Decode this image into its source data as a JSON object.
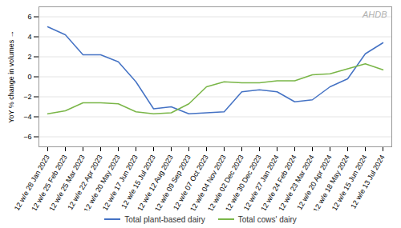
{
  "chart_data": {
    "type": "line",
    "ylabel": "YoY % change in volumes",
    "annotation": "AHDB",
    "categories": [
      "12 w/e 28 Jan 2023",
      "12 w/e 25 Feb 2023",
      "12 w/e 25 Mar 2023",
      "12 w/e 22 Apr 2023",
      "12 w/e 20 May 2023",
      "12 w/e 17 Jun 2023",
      "12 w/e 15 Jul 2023",
      "12 w/e 12 Aug 2023",
      "12 w/e 09 Sep 2023",
      "12 w/e 07 Oct 2023",
      "12 w/e 04 Nov 2023",
      "12 w/e 02 Dec 2023",
      "12 w/e 30 Dec 2023",
      "12 w/e 27 Jan 2024",
      "12 w/e 24 Feb 2024",
      "12 w/e 23 Mar 2024",
      "12 w/e 20 Apr 2024",
      "12 w/e 18 May 2024",
      "12 w/e 15 Jun 2024",
      "12 w/e 13 Jul 2024"
    ],
    "series": [
      {
        "name": "Total plant-based dairy",
        "color": "#4472C4",
        "values": [
          5.0,
          4.2,
          2.2,
          2.2,
          1.5,
          -0.5,
          -3.2,
          -3.0,
          -3.7,
          -3.6,
          -3.5,
          -1.5,
          -1.3,
          -1.5,
          -2.5,
          -2.3,
          -1.0,
          -0.2,
          2.3,
          3.4
        ]
      },
      {
        "name": "Total cows' dairy",
        "color": "#7AB648",
        "values": [
          -3.7,
          -3.4,
          -2.6,
          -2.6,
          -2.7,
          -3.5,
          -3.7,
          -3.6,
          -2.7,
          -1.0,
          -0.5,
          -0.6,
          -0.6,
          -0.4,
          -0.4,
          0.2,
          0.3,
          0.8,
          1.3,
          0.7
        ]
      }
    ],
    "ylim": [
      -7,
      7
    ],
    "yticks": [
      -6,
      -4,
      -2,
      0,
      2,
      4,
      6
    ],
    "grid": true,
    "legend": "bottom"
  }
}
